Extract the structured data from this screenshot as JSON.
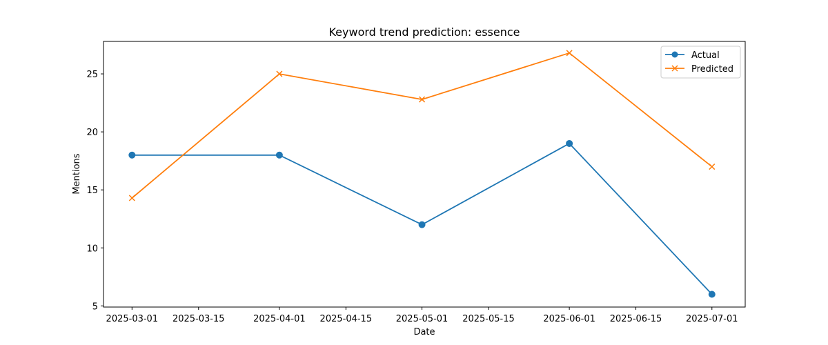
{
  "chart_data": {
    "type": "line",
    "title": "Keyword trend prediction: essence",
    "xlabel": "Date",
    "ylabel": "Mentions",
    "x_type": "date",
    "x": [
      "2025-03-01",
      "2025-04-01",
      "2025-05-01",
      "2025-06-01",
      "2025-07-01"
    ],
    "xlim": [
      "2025-02-23",
      "2025-07-08"
    ],
    "ylim": [
      4.9,
      27.8
    ],
    "x_ticks": [
      "2025-03-01",
      "2025-03-15",
      "2025-04-01",
      "2025-04-15",
      "2025-05-01",
      "2025-05-15",
      "2025-06-01",
      "2025-06-15",
      "2025-07-01"
    ],
    "y_ticks": [
      5,
      10,
      15,
      20,
      25
    ],
    "grid": false,
    "legend_position": "top-right",
    "series": [
      {
        "name": "Actual",
        "values": [
          18,
          18,
          12,
          19,
          6
        ],
        "color": "#1f77b4",
        "marker": "circle"
      },
      {
        "name": "Predicted",
        "values": [
          14.3,
          25.0,
          22.8,
          26.8,
          17.0
        ],
        "color": "#ff7f0e",
        "marker": "x"
      }
    ]
  }
}
